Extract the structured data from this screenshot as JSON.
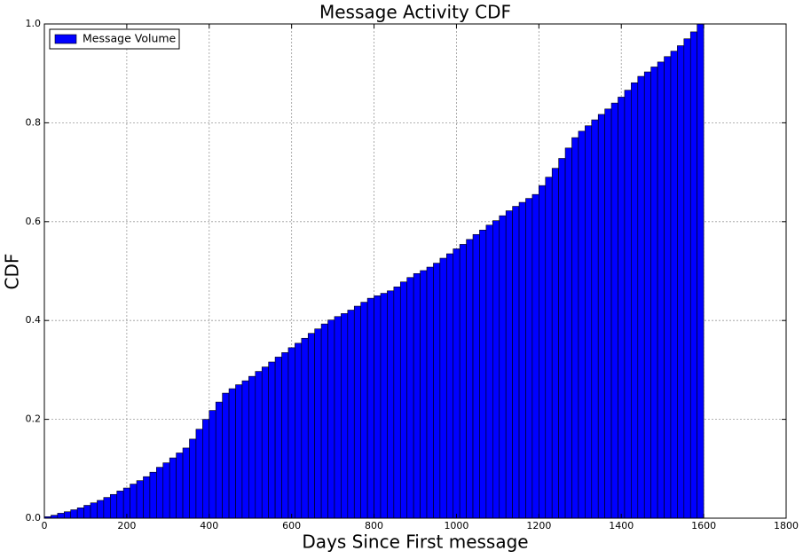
{
  "chart_data": {
    "type": "histogram",
    "title": "Message Activity CDF",
    "xlabel": "Days Since First message",
    "ylabel": "CDF",
    "bins": [
      0,
      16,
      32,
      48,
      64,
      80,
      96,
      112,
      128,
      144,
      160,
      176,
      192,
      208,
      224,
      240,
      256,
      272,
      288,
      304,
      320,
      336,
      352,
      368,
      384,
      400,
      416,
      432,
      448,
      464,
      480,
      496,
      512,
      528,
      544,
      560,
      576,
      592,
      608,
      624,
      640,
      656,
      672,
      688,
      704,
      720,
      736,
      752,
      768,
      784,
      800,
      816,
      832,
      848,
      864,
      880,
      896,
      912,
      928,
      944,
      960,
      976,
      992,
      1008,
      1024,
      1040,
      1056,
      1072,
      1088,
      1104,
      1120,
      1136,
      1152,
      1168,
      1184,
      1200,
      1216,
      1232,
      1248,
      1264,
      1280,
      1296,
      1312,
      1328,
      1344,
      1360,
      1376,
      1392,
      1408,
      1424,
      1440,
      1456,
      1472,
      1488,
      1504,
      1520,
      1536,
      1552,
      1568,
      1584,
      1600
    ],
    "series": [
      {
        "name": "Message Volume",
        "color": "#0000ff",
        "values": [
          0.003,
          0.006,
          0.01,
          0.013,
          0.017,
          0.021,
          0.026,
          0.031,
          0.036,
          0.042,
          0.048,
          0.055,
          0.061,
          0.069,
          0.076,
          0.084,
          0.093,
          0.103,
          0.112,
          0.122,
          0.132,
          0.142,
          0.16,
          0.18,
          0.2,
          0.218,
          0.235,
          0.253,
          0.262,
          0.27,
          0.278,
          0.287,
          0.297,
          0.306,
          0.316,
          0.326,
          0.335,
          0.345,
          0.354,
          0.364,
          0.374,
          0.383,
          0.393,
          0.401,
          0.408,
          0.414,
          0.421,
          0.429,
          0.437,
          0.445,
          0.45,
          0.455,
          0.46,
          0.468,
          0.478,
          0.487,
          0.495,
          0.501,
          0.508,
          0.516,
          0.526,
          0.535,
          0.545,
          0.554,
          0.564,
          0.574,
          0.583,
          0.593,
          0.602,
          0.612,
          0.622,
          0.631,
          0.639,
          0.647,
          0.655,
          0.673,
          0.69,
          0.708,
          0.728,
          0.749,
          0.77,
          0.783,
          0.794,
          0.806,
          0.817,
          0.828,
          0.84,
          0.852,
          0.866,
          0.881,
          0.894,
          0.903,
          0.913,
          0.923,
          0.934,
          0.945,
          0.956,
          0.97,
          0.984,
          1.0
        ]
      }
    ],
    "xlim": [
      0,
      1800
    ],
    "xticks": [
      0,
      200,
      400,
      600,
      800,
      1000,
      1200,
      1400,
      1600,
      1800
    ],
    "ylim": [
      0,
      1
    ],
    "yticks": [
      {
        "value": 0,
        "label": "0.0"
      },
      0.2,
      0.4,
      0.6,
      0.8,
      {
        "value": 1,
        "label": "1.0"
      }
    ],
    "grid": true,
    "legend": "upper left"
  }
}
